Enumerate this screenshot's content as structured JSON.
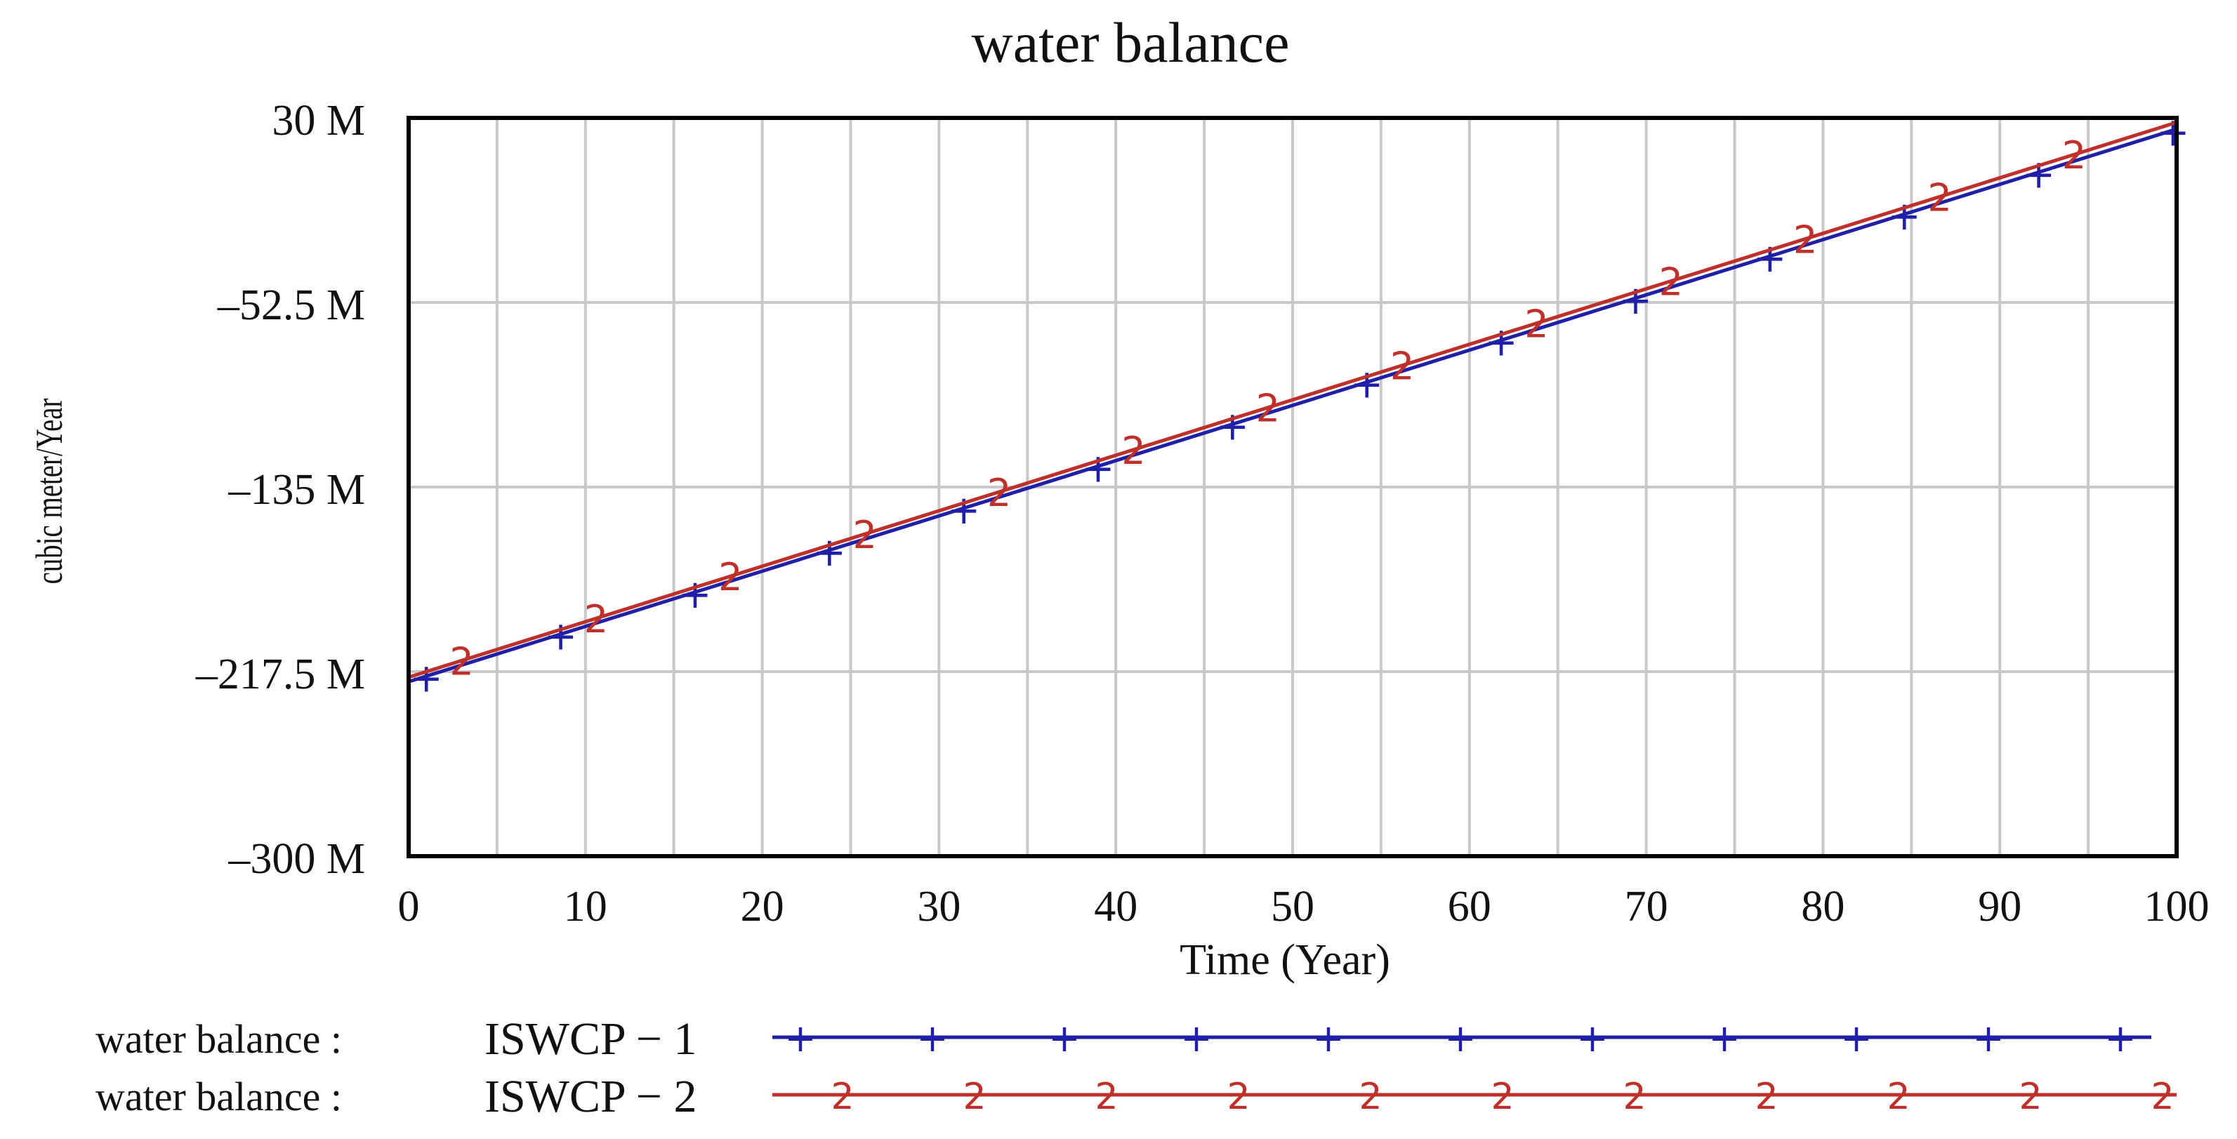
{
  "chart_data": {
    "type": "line",
    "title": "water balance",
    "xlabel": "Time (Year)",
    "ylabel": "cubic meter/Year",
    "xlim": [
      0,
      100
    ],
    "ylim": [
      -300000000,
      30000000
    ],
    "x_ticks": [
      "0",
      "10",
      "20",
      "30",
      "40",
      "50",
      "60",
      "70",
      "80",
      "90",
      "100"
    ],
    "y_ticks": [
      {
        "value": 30000000,
        "label": "30 M"
      },
      {
        "value": -52500000,
        "label": "–52.5 M"
      },
      {
        "value": -135000000,
        "label": "–135 M"
      },
      {
        "value": -217500000,
        "label": "–217.5 M"
      },
      {
        "value": -300000000,
        "label": "–300 M"
      }
    ],
    "grid": true,
    "legend_position": "bottom",
    "series": [
      {
        "name": "water balance : ISWCP − 1",
        "legend_prefix": "water balance :",
        "legend_scenario": "ISWCP − 1",
        "marker": "1",
        "color": "#1f1fa8",
        "x": [
          0,
          100
        ],
        "values": [
          -222000000,
          25000000
        ]
      },
      {
        "name": "water balance : ISWCP − 2",
        "legend_prefix": "water balance :",
        "legend_scenario": "ISWCP − 2",
        "marker": "2",
        "color": "#c0302a",
        "x": [
          0,
          100
        ],
        "values": [
          -220000000,
          28000000
        ]
      }
    ]
  }
}
